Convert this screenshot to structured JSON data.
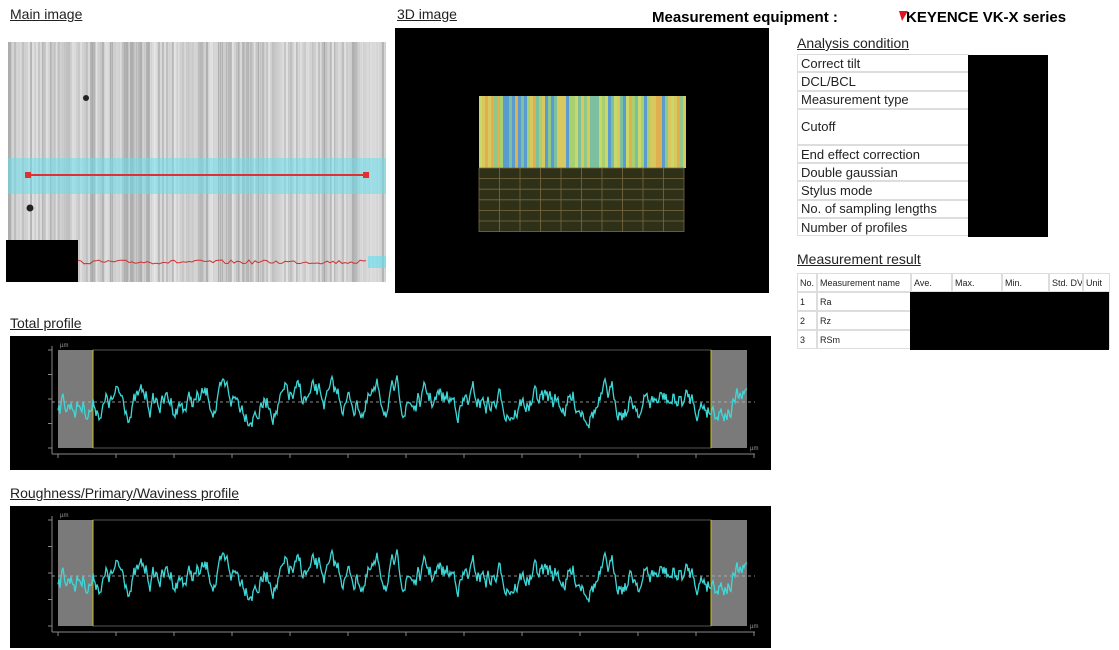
{
  "header": {
    "main_image_title": "Main image",
    "image_3d_title": "3D image",
    "equipment_label": "Measurement equipment :",
    "equipment_brand": "KEYENCE",
    "equipment_model": "VK-X series"
  },
  "analysis_condition": {
    "title": "Analysis condition",
    "rows": [
      "Correct tilt",
      "DCL/BCL",
      "Measurement type",
      "Cutoff",
      "End effect correction",
      "Double gaussian",
      "Stylus mode",
      "No. of sampling lengths",
      "Number of profiles"
    ]
  },
  "measurement_result": {
    "title": "Measurement result",
    "columns": [
      "No.",
      "Measurement name",
      "Ave.",
      "Max.",
      "Min.",
      "Std. DV",
      "Unit"
    ],
    "rows": [
      [
        "1",
        "Ra"
      ],
      [
        "2",
        "Rz"
      ],
      [
        "3",
        "RSm"
      ]
    ]
  },
  "profiles": [
    {
      "title": "Total profile",
      "unit": "µm"
    },
    {
      "title": "Roughness/Primary/Waviness profile",
      "unit": "µm"
    }
  ]
}
